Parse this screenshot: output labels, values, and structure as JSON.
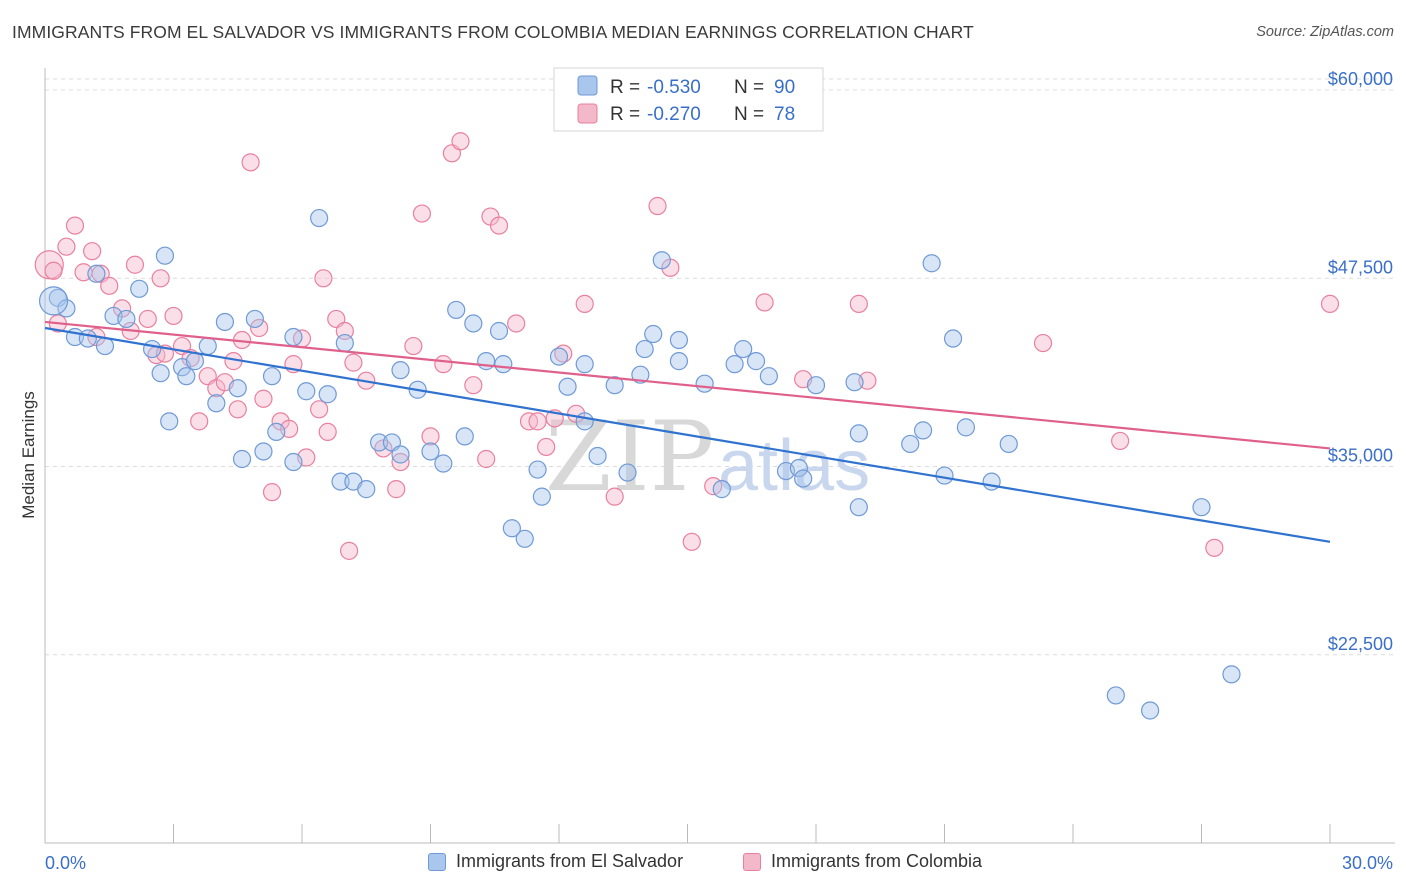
{
  "header": {
    "title": "IMMIGRANTS FROM EL SALVADOR VS IMMIGRANTS FROM COLOMBIA MEDIAN EARNINGS CORRELATION CHART",
    "source": "Source: ZipAtlas.com"
  },
  "watermark": {
    "zip": "ZIP",
    "atlas": "atlas"
  },
  "legend_box": {
    "rows": [
      {
        "r_label": "R =",
        "r_value": "-0.530",
        "n_label": "N =",
        "n_value": "90"
      },
      {
        "r_label": "R =",
        "r_value": "-0.270",
        "n_label": "N =",
        "n_value": "78"
      }
    ]
  },
  "bottom_legend": {
    "items": [
      {
        "label": "Immigrants from El Salvador"
      },
      {
        "label": "Immigrants from Colombia"
      }
    ]
  },
  "colors": {
    "blue_fill": "#a9c6ec",
    "blue_stroke": "#6f9ad6",
    "blue_line": "#2f72d0",
    "pink_fill": "#f4b8cb",
    "pink_stroke": "#e9809f",
    "pink_line": "#e0608c",
    "grid": "#dcdcdc",
    "axis_label": "#3a6fc9"
  },
  "chart_data": {
    "type": "scatter",
    "title": "IMMIGRANTS FROM EL SALVADOR VS IMMIGRANTS FROM COLOMBIA MEDIAN EARNINGS CORRELATION CHART",
    "xlabel": "",
    "ylabel": "Median Earnings",
    "xlim": [
      0,
      30
    ],
    "ylim": [
      10000,
      61000
    ],
    "x_tick_labels": [
      "0.0%",
      "30.0%"
    ],
    "y_tick_values": [
      22500,
      35000,
      47500,
      60000
    ],
    "y_tick_labels": [
      "$22,500",
      "$35,000",
      "$47,500",
      "$60,000"
    ],
    "grid": true,
    "legend_position": "top-center",
    "series": [
      {
        "name": "Immigrants from El Salvador",
        "r": -0.53,
        "n": 90,
        "trend": {
          "x": [
            0,
            30
          ],
          "y": [
            44200,
            30000
          ]
        },
        "points": [
          [
            0.3,
            46200
          ],
          [
            0.5,
            45500
          ],
          [
            0.7,
            43600
          ],
          [
            1.0,
            43500
          ],
          [
            1.2,
            47800
          ],
          [
            1.4,
            43000
          ],
          [
            1.6,
            45000
          ],
          [
            1.9,
            44800
          ],
          [
            2.2,
            46800
          ],
          [
            2.5,
            42800
          ],
          [
            2.7,
            41200
          ],
          [
            2.8,
            49000
          ],
          [
            2.9,
            38000
          ],
          [
            3.2,
            41600
          ],
          [
            3.3,
            41000
          ],
          [
            3.5,
            42000
          ],
          [
            3.8,
            43000
          ],
          [
            4.0,
            39200
          ],
          [
            4.2,
            44600
          ],
          [
            4.5,
            40200
          ],
          [
            4.6,
            35500
          ],
          [
            4.9,
            44800
          ],
          [
            5.1,
            36000
          ],
          [
            5.3,
            41000
          ],
          [
            5.4,
            37300
          ],
          [
            5.8,
            35300
          ],
          [
            5.8,
            43600
          ],
          [
            6.1,
            40000
          ],
          [
            6.4,
            51500
          ],
          [
            6.6,
            39800
          ],
          [
            6.9,
            34000
          ],
          [
            7.0,
            43200
          ],
          [
            7.2,
            34000
          ],
          [
            7.5,
            33500
          ],
          [
            7.8,
            36600
          ],
          [
            8.1,
            36600
          ],
          [
            8.3,
            35800
          ],
          [
            8.3,
            41400
          ],
          [
            8.7,
            40100
          ],
          [
            9.0,
            36000
          ],
          [
            9.3,
            35200
          ],
          [
            9.6,
            45400
          ],
          [
            9.8,
            37000
          ],
          [
            10.0,
            44500
          ],
          [
            10.3,
            42000
          ],
          [
            10.6,
            44000
          ],
          [
            10.7,
            41800
          ],
          [
            10.9,
            30900
          ],
          [
            11.2,
            30200
          ],
          [
            11.5,
            34800
          ],
          [
            11.6,
            33000
          ],
          [
            12.0,
            42300
          ],
          [
            12.2,
            40300
          ],
          [
            12.6,
            41800
          ],
          [
            12.6,
            38000
          ],
          [
            12.9,
            35700
          ],
          [
            13.3,
            40400
          ],
          [
            13.6,
            34600
          ],
          [
            13.9,
            41100
          ],
          [
            14.0,
            42800
          ],
          [
            14.2,
            43800
          ],
          [
            14.4,
            48700
          ],
          [
            14.8,
            42000
          ],
          [
            14.8,
            43400
          ],
          [
            15.4,
            40500
          ],
          [
            15.8,
            33500
          ],
          [
            16.1,
            41800
          ],
          [
            16.3,
            42800
          ],
          [
            16.6,
            42000
          ],
          [
            16.9,
            41000
          ],
          [
            17.3,
            34700
          ],
          [
            17.6,
            34900
          ],
          [
            17.7,
            34200
          ],
          [
            18.0,
            40400
          ],
          [
            18.9,
            40600
          ],
          [
            19.0,
            37200
          ],
          [
            19.0,
            32300
          ],
          [
            20.2,
            36500
          ],
          [
            20.5,
            37400
          ],
          [
            20.7,
            48500
          ],
          [
            21.0,
            34400
          ],
          [
            21.2,
            43500
          ],
          [
            21.5,
            37600
          ],
          [
            22.1,
            34000
          ],
          [
            22.5,
            36500
          ],
          [
            25.0,
            19800
          ],
          [
            25.8,
            18800
          ],
          [
            27.0,
            32300
          ],
          [
            27.7,
            21200
          ],
          [
            0.2,
            46000
          ]
        ]
      },
      {
        "name": "Immigrants from Colombia",
        "r": -0.27,
        "n": 78,
        "trend": {
          "x": [
            0,
            30
          ],
          "y": [
            44600,
            36200
          ]
        },
        "points": [
          [
            0.1,
            48400
          ],
          [
            0.3,
            44500
          ],
          [
            0.5,
            49600
          ],
          [
            0.7,
            51000
          ],
          [
            0.9,
            47900
          ],
          [
            1.1,
            49300
          ],
          [
            1.3,
            47800
          ],
          [
            1.5,
            47000
          ],
          [
            1.8,
            45500
          ],
          [
            2.0,
            44000
          ],
          [
            2.1,
            48400
          ],
          [
            2.4,
            44800
          ],
          [
            2.6,
            42400
          ],
          [
            2.7,
            47500
          ],
          [
            2.8,
            42500
          ],
          [
            3.0,
            45000
          ],
          [
            3.2,
            43000
          ],
          [
            3.4,
            42200
          ],
          [
            3.6,
            38000
          ],
          [
            3.8,
            41000
          ],
          [
            4.0,
            40200
          ],
          [
            4.2,
            40600
          ],
          [
            4.4,
            42000
          ],
          [
            4.5,
            38800
          ],
          [
            4.6,
            43400
          ],
          [
            4.8,
            55200
          ],
          [
            5.0,
            44200
          ],
          [
            5.1,
            39500
          ],
          [
            5.3,
            33300
          ],
          [
            5.5,
            38000
          ],
          [
            5.7,
            37500
          ],
          [
            5.8,
            41800
          ],
          [
            6.0,
            43500
          ],
          [
            6.1,
            35600
          ],
          [
            6.4,
            38800
          ],
          [
            6.5,
            47500
          ],
          [
            6.6,
            37300
          ],
          [
            6.8,
            44800
          ],
          [
            7.0,
            44000
          ],
          [
            7.1,
            29400
          ],
          [
            7.2,
            41900
          ],
          [
            7.5,
            40700
          ],
          [
            7.9,
            36200
          ],
          [
            8.2,
            33500
          ],
          [
            8.3,
            35300
          ],
          [
            8.6,
            43000
          ],
          [
            8.8,
            51800
          ],
          [
            9.0,
            37000
          ],
          [
            9.3,
            41800
          ],
          [
            9.5,
            55800
          ],
          [
            9.7,
            56600
          ],
          [
            10.0,
            40400
          ],
          [
            10.3,
            35500
          ],
          [
            10.4,
            51600
          ],
          [
            10.6,
            51000
          ],
          [
            11.0,
            44500
          ],
          [
            11.3,
            38000
          ],
          [
            11.5,
            38000
          ],
          [
            11.7,
            36300
          ],
          [
            11.9,
            38200
          ],
          [
            12.1,
            42500
          ],
          [
            12.4,
            38500
          ],
          [
            12.6,
            45800
          ],
          [
            13.3,
            33000
          ],
          [
            14.3,
            52300
          ],
          [
            14.6,
            48200
          ],
          [
            15.1,
            30000
          ],
          [
            15.6,
            33700
          ],
          [
            16.8,
            45900
          ],
          [
            17.7,
            40800
          ],
          [
            19.0,
            45800
          ],
          [
            19.2,
            40700
          ],
          [
            23.3,
            43200
          ],
          [
            25.1,
            36700
          ],
          [
            27.3,
            29600
          ],
          [
            30.0,
            45800
          ],
          [
            0.2,
            48000
          ],
          [
            1.2,
            43600
          ]
        ]
      }
    ]
  }
}
